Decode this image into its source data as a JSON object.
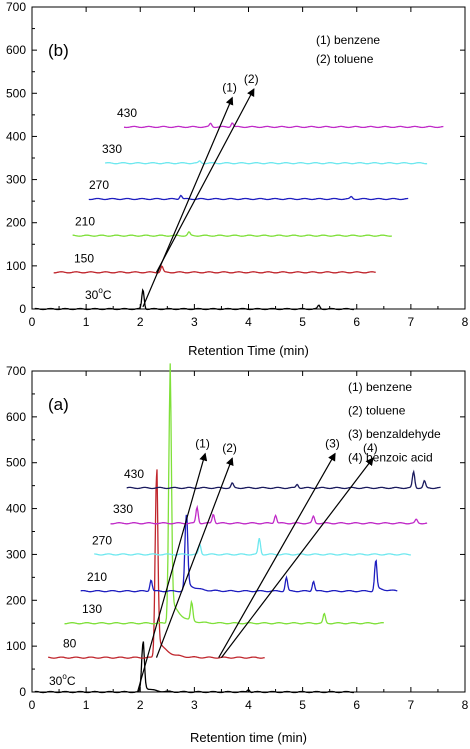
{
  "chart_data": [
    {
      "type": "line",
      "panel_label": "(b)",
      "xlabel": "Retention Time (min)",
      "ylabel": "",
      "xlim": [
        0,
        8
      ],
      "ylim": [
        0,
        700
      ],
      "xticks": [
        "0",
        "1",
        "2",
        "3",
        "4",
        "5",
        "6",
        "7",
        "8"
      ],
      "yticks": [
        "0",
        "100",
        "200",
        "300",
        "400",
        "500",
        "600",
        "700"
      ],
      "legend": [
        "(1) benzene",
        "(2) toluene"
      ],
      "annotations": [
        {
          "text": "(1)",
          "from": [
            2.05,
            5
          ],
          "to": [
            3.7,
            490
          ]
        },
        {
          "text": "(2)",
          "from": [
            2.3,
            85
          ],
          "to": [
            4.1,
            510
          ]
        }
      ],
      "series": [
        {
          "name": "30°C",
          "label_main": "30",
          "label_sup": "o",
          "label_tail": "C",
          "color": "#000000",
          "x_start": 0.05,
          "x_end": 5.95,
          "baseline": 0,
          "peaks": [
            {
              "x": 2.05,
              "h": 45
            },
            {
              "x": 5.3,
              "h": 8
            }
          ]
        },
        {
          "name": "150",
          "color": "#c0262d",
          "x_start": 0.4,
          "x_end": 6.35,
          "baseline": 85,
          "peaks": [
            {
              "x": 2.4,
              "h": 14
            }
          ]
        },
        {
          "name": "210",
          "color": "#7fe03a",
          "x_start": 0.75,
          "x_end": 6.65,
          "baseline": 170,
          "peaks": [
            {
              "x": 2.9,
              "h": 8
            }
          ]
        },
        {
          "name": "270",
          "color": "#1e1ec0",
          "x_start": 1.05,
          "x_end": 6.95,
          "baseline": 255,
          "peaks": [
            {
              "x": 2.75,
              "h": 9
            },
            {
              "x": 5.9,
              "h": 5
            }
          ]
        },
        {
          "name": "330",
          "color": "#6fe8ef",
          "x_start": 1.35,
          "x_end": 7.3,
          "baseline": 338,
          "peaks": [
            {
              "x": 3.1,
              "h": 5
            }
          ]
        },
        {
          "name": "430",
          "color": "#c02bc8",
          "x_start": 1.7,
          "x_end": 7.6,
          "baseline": 422,
          "peaks": [
            {
              "x": 3.3,
              "h": 8
            },
            {
              "x": 3.7,
              "h": 10
            }
          ]
        }
      ]
    },
    {
      "type": "line",
      "panel_label": "(a)",
      "xlabel": "Retention time (min)",
      "ylabel": "",
      "xlim": [
        0,
        8
      ],
      "ylim": [
        0,
        700
      ],
      "xticks": [
        "0",
        "1",
        "2",
        "3",
        "4",
        "5",
        "6",
        "7",
        "8"
      ],
      "yticks": [
        "0",
        "100",
        "200",
        "300",
        "400",
        "500",
        "600",
        "700"
      ],
      "legend": [
        "(1) benzene",
        "(2) toluene",
        "(3) benzaldehyde",
        "(4) benzoic acid"
      ],
      "annotations": [
        {
          "text": "(1)",
          "from": [
            1.95,
            0
          ],
          "to": [
            3.2,
            520
          ]
        },
        {
          "text": "(2)",
          "from": [
            2.3,
            75
          ],
          "to": [
            3.7,
            510
          ]
        },
        {
          "text": "(3)",
          "from": [
            3.45,
            75
          ],
          "to": [
            5.6,
            520
          ]
        },
        {
          "text": "(4)",
          "from": [
            3.5,
            75
          ],
          "to": [
            6.3,
            510
          ]
        }
      ],
      "series": [
        {
          "name": "30°C",
          "label_main": "30",
          "label_sup": "o",
          "label_tail": "C",
          "color": "#000000",
          "x_start": 0.05,
          "x_end": 5.95,
          "baseline": 0,
          "peaks": [
            {
              "x": 2.05,
              "h": 105
            },
            {
              "x": 4.0,
              "h": 6
            }
          ]
        },
        {
          "name": "80",
          "color": "#c0262d",
          "x_start": 0.3,
          "x_end": 4.3,
          "baseline": 75,
          "peaks": [
            {
              "x": 2.3,
              "h": 395
            }
          ]
        },
        {
          "name": "130",
          "color": "#7fe03a",
          "x_start": 0.6,
          "x_end": 6.5,
          "baseline": 150,
          "peaks": [
            {
              "x": 2.55,
              "h": 510
            },
            {
              "x": 2.95,
              "h": 40
            },
            {
              "x": 5.4,
              "h": 20
            }
          ]
        },
        {
          "name": "210",
          "color": "#1e1ec0",
          "x_start": 0.9,
          "x_end": 6.75,
          "baseline": 220,
          "peaks": [
            {
              "x": 2.2,
              "h": 25
            },
            {
              "x": 2.85,
              "h": 165
            },
            {
              "x": 4.7,
              "h": 30
            },
            {
              "x": 5.2,
              "h": 22
            },
            {
              "x": 6.35,
              "h": 65
            }
          ]
        },
        {
          "name": "270",
          "color": "#6fe8ef",
          "x_start": 1.15,
          "x_end": 7.0,
          "baseline": 300,
          "peaks": [
            {
              "x": 3.1,
              "h": 22
            },
            {
              "x": 4.2,
              "h": 35
            }
          ]
        },
        {
          "name": "330",
          "color": "#c02bc8",
          "x_start": 1.45,
          "x_end": 7.3,
          "baseline": 368,
          "peaks": [
            {
              "x": 3.05,
              "h": 35
            },
            {
              "x": 3.35,
              "h": 20
            },
            {
              "x": 4.5,
              "h": 18
            },
            {
              "x": 5.2,
              "h": 15
            },
            {
              "x": 7.1,
              "h": 8
            }
          ]
        },
        {
          "name": "430",
          "color": "#1a1a5e",
          "x_start": 1.75,
          "x_end": 7.55,
          "baseline": 445,
          "peaks": [
            {
              "x": 3.7,
              "h": 10
            },
            {
              "x": 4.9,
              "h": 8
            },
            {
              "x": 7.05,
              "h": 35
            },
            {
              "x": 7.25,
              "h": 15
            }
          ]
        }
      ]
    }
  ]
}
